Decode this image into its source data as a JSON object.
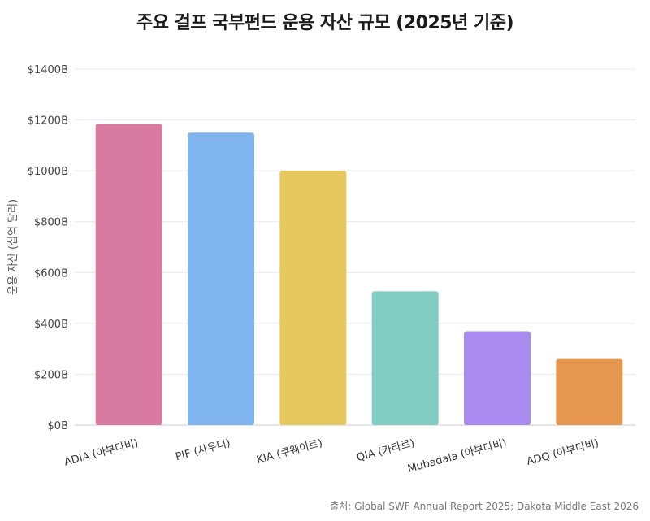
{
  "chart_data": {
    "type": "bar",
    "title": "주요 걸프 국부펀드 운용 자산 규모 (2025년 기준)",
    "ylabel": "운용 자산 (십억 달러)",
    "xlabel": "",
    "ylim": [
      0,
      1400
    ],
    "yticks": [
      0,
      200,
      400,
      600,
      800,
      1000,
      1200,
      1400
    ],
    "ytick_labels": [
      "$0B",
      "$200B",
      "$400B",
      "$600B",
      "$800B",
      "$1000B",
      "$1200B",
      "$1400B"
    ],
    "categories": [
      "ADIA (아부다비)",
      "PIF (사우디)",
      "KIA (쿠웨이트)",
      "QIA (카타르)",
      "Mubadala (아부다비)",
      "ADQ (아부다비)"
    ],
    "values": [
      1185,
      1150,
      1000,
      526,
      369,
      260
    ],
    "colors": [
      "#d97ba0",
      "#80b4ee",
      "#e6c85f",
      "#80cbc2",
      "#a98bef",
      "#e5974f"
    ],
    "grid": true,
    "source": "출처: Global SWF Annual Report 2025; Dakota Middle East 2026"
  }
}
